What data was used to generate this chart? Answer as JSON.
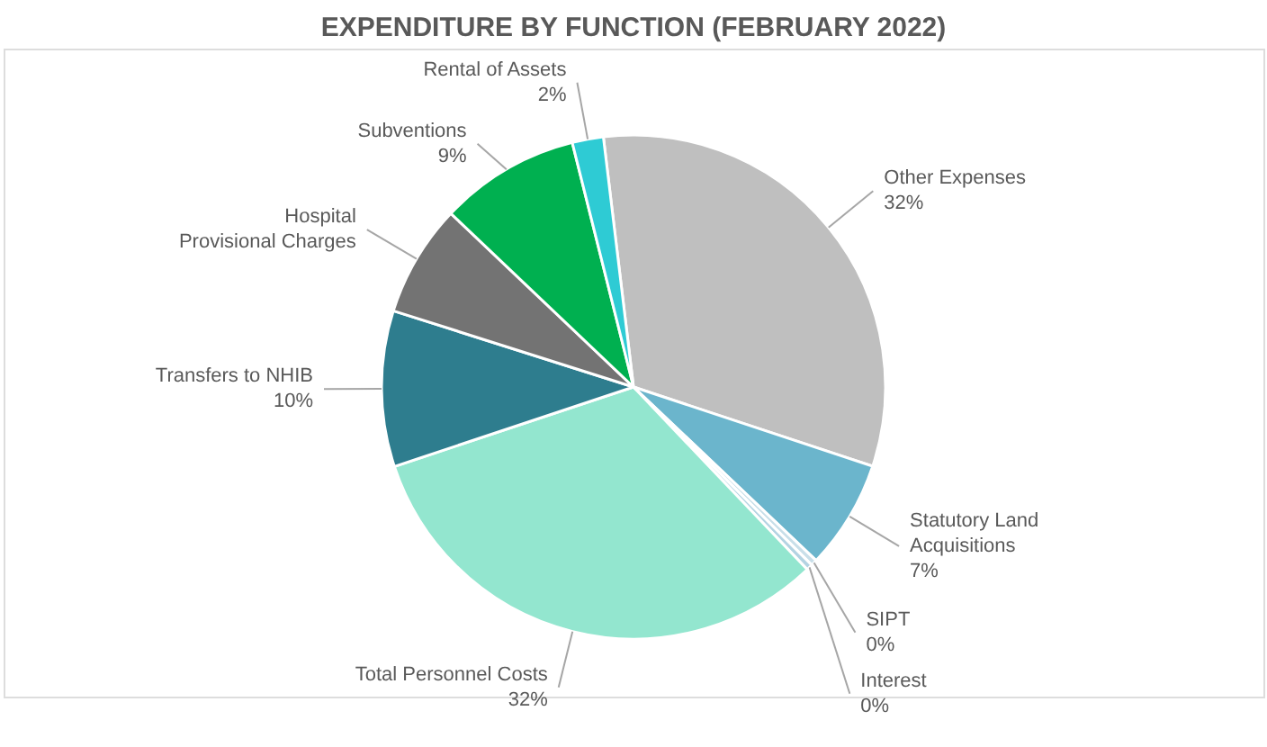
{
  "chart_data": {
    "type": "pie",
    "title": "EXPENDITURE BY FUNCTION (FEBRUARY 2022)",
    "categories": [
      "Other Expenses",
      "Statutory Land Acquisitions",
      "SIPT",
      "Interest",
      "Total Personnel Costs",
      "Transfers to NHIB",
      "Hospital Provisional Charges",
      "Subventions",
      "Rental of Assets"
    ],
    "values": [
      32,
      7,
      0.4,
      0.4,
      32,
      10,
      7.2,
      9,
      2
    ],
    "value_labels": [
      "32%",
      "7%",
      "0%",
      "0%",
      "32%",
      "10%",
      null,
      "9%",
      "2%"
    ],
    "colors": [
      "#bfbfbf",
      "#6bb5cc",
      "#c9dfe9",
      "#b3d3e2",
      "#93e6cf",
      "#2e7d8e",
      "#737373",
      "#00b050",
      "#2ecbd4"
    ],
    "legend": false
  }
}
